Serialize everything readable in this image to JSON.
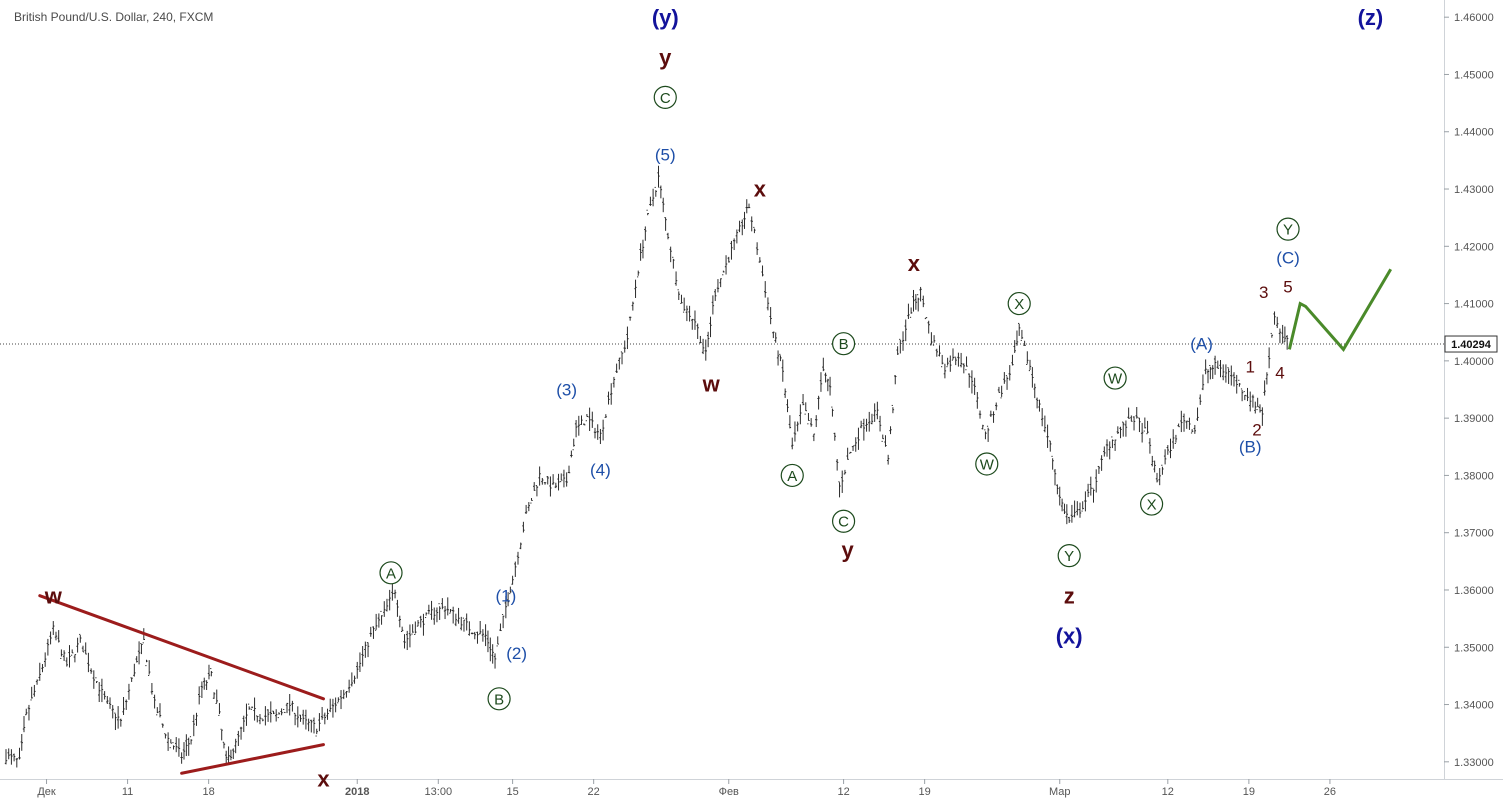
{
  "title": "British Pound/U.S. Dollar, 240, FXCM",
  "chart_data": {
    "type": "ohlc",
    "symbol": "British Pound/U.S. Dollar",
    "interval": "240",
    "source": "FXCM",
    "current_price": "1.40294",
    "y_axis": {
      "range": [
        1.327,
        1.463
      ],
      "tick_values": [
        1.33,
        1.34,
        1.35,
        1.36,
        1.37,
        1.38,
        1.39,
        1.4,
        1.41,
        1.42,
        1.43,
        1.44,
        1.45,
        1.46
      ],
      "tick_labels": [
        "1.33000",
        "1.34000",
        "1.35000",
        "1.36000",
        "1.37000",
        "1.38000",
        "1.39000",
        "1.40000",
        "1.41000",
        "1.42000",
        "1.43000",
        "1.44000",
        "1.45000",
        "1.46000"
      ]
    },
    "x_axis": {
      "range": [
        0,
        106
      ],
      "ticks": [
        {
          "x": 3,
          "label": "Дек"
        },
        {
          "x": 9,
          "label": "11"
        },
        {
          "x": 15,
          "label": "18"
        },
        {
          "x": 26,
          "label": "2018",
          "bold": true
        },
        {
          "x": 32,
          "label": "13:00"
        },
        {
          "x": 37.5,
          "label": "15"
        },
        {
          "x": 43.5,
          "label": "22"
        },
        {
          "x": 53.5,
          "label": "Фев"
        },
        {
          "x": 62,
          "label": "12"
        },
        {
          "x": 68,
          "label": "19"
        },
        {
          "x": 78,
          "label": "Мар"
        },
        {
          "x": 86,
          "label": "12"
        },
        {
          "x": 92,
          "label": "19"
        },
        {
          "x": 98,
          "label": "26"
        }
      ]
    },
    "price_path": [
      [
        0,
        1.331
      ],
      [
        1,
        1.33
      ],
      [
        1.5,
        1.338
      ],
      [
        2.5,
        1.345
      ],
      [
        3.5,
        1.353
      ],
      [
        4.5,
        1.347
      ],
      [
        5.5,
        1.351
      ],
      [
        6.5,
        1.345
      ],
      [
        7.5,
        1.34
      ],
      [
        8.5,
        1.337
      ],
      [
        9.5,
        1.346
      ],
      [
        10.2,
        1.351
      ],
      [
        11,
        1.34
      ],
      [
        12,
        1.334
      ],
      [
        13,
        1.331
      ],
      [
        13.7,
        1.334
      ],
      [
        14.5,
        1.343
      ],
      [
        15.2,
        1.345
      ],
      [
        15.8,
        1.338
      ],
      [
        16.3,
        1.33
      ],
      [
        17,
        1.333
      ],
      [
        18,
        1.339
      ],
      [
        19,
        1.338
      ],
      [
        20,
        1.338
      ],
      [
        21,
        1.34
      ],
      [
        22,
        1.337
      ],
      [
        23,
        1.336
      ],
      [
        24,
        1.339
      ],
      [
        25,
        1.342
      ],
      [
        26,
        1.346
      ],
      [
        27,
        1.352
      ],
      [
        28,
        1.356
      ],
      [
        28.8,
        1.36
      ],
      [
        29.5,
        1.351
      ],
      [
        30.5,
        1.354
      ],
      [
        31.5,
        1.356
      ],
      [
        32.5,
        1.357
      ],
      [
        33.5,
        1.355
      ],
      [
        34.5,
        1.353
      ],
      [
        35.5,
        1.352
      ],
      [
        36.2,
        1.348
      ],
      [
        37,
        1.357
      ],
      [
        37.5,
        1.362
      ],
      [
        38.5,
        1.373
      ],
      [
        39.5,
        1.38
      ],
      [
        40.5,
        1.378
      ],
      [
        41.5,
        1.379
      ],
      [
        42.2,
        1.388
      ],
      [
        43,
        1.39
      ],
      [
        44,
        1.387
      ],
      [
        45,
        1.397
      ],
      [
        46,
        1.404
      ],
      [
        46.8,
        1.416
      ],
      [
        47.5,
        1.425
      ],
      [
        48.3,
        1.432
      ],
      [
        49,
        1.422
      ],
      [
        50,
        1.41
      ],
      [
        51,
        1.407
      ],
      [
        51.8,
        1.401
      ],
      [
        52.5,
        1.412
      ],
      [
        53.5,
        1.418
      ],
      [
        54.5,
        1.424
      ],
      [
        55,
        1.427
      ],
      [
        56,
        1.415
      ],
      [
        56.8,
        1.405
      ],
      [
        57.5,
        1.398
      ],
      [
        58.2,
        1.385
      ],
      [
        59,
        1.392
      ],
      [
        59.8,
        1.387
      ],
      [
        60.5,
        1.399
      ],
      [
        61,
        1.395
      ],
      [
        61.7,
        1.378
      ],
      [
        62.5,
        1.384
      ],
      [
        63.5,
        1.389
      ],
      [
        64.5,
        1.391
      ],
      [
        65.3,
        1.383
      ],
      [
        66,
        1.401
      ],
      [
        67,
        1.409
      ],
      [
        67.7,
        1.412
      ],
      [
        68.5,
        1.404
      ],
      [
        69.5,
        1.399
      ],
      [
        70.5,
        1.401
      ],
      [
        71.5,
        1.397
      ],
      [
        72.5,
        1.387
      ],
      [
        73.5,
        1.394
      ],
      [
        74.5,
        1.399
      ],
      [
        75,
        1.405
      ],
      [
        75.8,
        1.399
      ],
      [
        76.5,
        1.392
      ],
      [
        77.3,
        1.385
      ],
      [
        78,
        1.376
      ],
      [
        78.7,
        1.372
      ],
      [
        79.5,
        1.374
      ],
      [
        80.5,
        1.378
      ],
      [
        81.5,
        1.385
      ],
      [
        82.5,
        1.388
      ],
      [
        83.5,
        1.39
      ],
      [
        84.5,
        1.387
      ],
      [
        85.2,
        1.379
      ],
      [
        86.2,
        1.385
      ],
      [
        87.2,
        1.39
      ],
      [
        88,
        1.388
      ],
      [
        88.8,
        1.398
      ],
      [
        89.5,
        1.399
      ],
      [
        90.5,
        1.398
      ],
      [
        91.5,
        1.395
      ],
      [
        92.3,
        1.393
      ],
      [
        93,
        1.391
      ],
      [
        93.5,
        1.401
      ],
      [
        93.9,
        1.408
      ],
      [
        94.5,
        1.404
      ],
      [
        95,
        1.4029
      ]
    ],
    "horizontal_line": {
      "price": 1.40294,
      "style": "dotted"
    },
    "trendlines": [
      {
        "color": "#9c1c1c",
        "from": [
          2.5,
          1.359
        ],
        "to": [
          23.5,
          1.341
        ]
      },
      {
        "color": "#9c1c1c",
        "from": [
          13,
          1.328
        ],
        "to": [
          23.5,
          1.333
        ]
      }
    ],
    "projection": {
      "color": "#4a8a2a",
      "points": [
        [
          95,
          1.402
        ],
        [
          95.8,
          1.41
        ],
        [
          96.2,
          1.4095
        ],
        [
          99,
          1.402
        ],
        [
          102.5,
          1.416
        ]
      ]
    },
    "wave_labels": [
      {
        "text": "w",
        "x": 3.5,
        "y": 1.359,
        "style": "dark-red"
      },
      {
        "text": "x",
        "x": 23.5,
        "y": 1.327,
        "style": "dark-red"
      },
      {
        "text": "A",
        "x": 28.5,
        "y": 1.363,
        "style": "circled"
      },
      {
        "text": "B",
        "x": 36.5,
        "y": 1.341,
        "style": "circled"
      },
      {
        "text": "(1)",
        "x": 37,
        "y": 1.359,
        "style": "blue"
      },
      {
        "text": "(2)",
        "x": 37.8,
        "y": 1.349,
        "style": "blue"
      },
      {
        "text": "(3)",
        "x": 41.5,
        "y": 1.395,
        "style": "blue"
      },
      {
        "text": "(4)",
        "x": 44,
        "y": 1.381,
        "style": "blue"
      },
      {
        "text": "(5)",
        "x": 48.8,
        "y": 1.436,
        "style": "blue"
      },
      {
        "text": "C",
        "x": 48.8,
        "y": 1.446,
        "style": "circled"
      },
      {
        "text": "y",
        "x": 48.8,
        "y": 1.453,
        "style": "dark-red"
      },
      {
        "text": "(y)",
        "x": 48.8,
        "y": 1.46,
        "style": "navy"
      },
      {
        "text": "w",
        "x": 52.2,
        "y": 1.396,
        "style": "dark-red"
      },
      {
        "text": "x",
        "x": 55.8,
        "y": 1.43,
        "style": "dark-red"
      },
      {
        "text": "A",
        "x": 58.2,
        "y": 1.38,
        "style": "circled"
      },
      {
        "text": "B",
        "x": 62,
        "y": 1.403,
        "style": "circled"
      },
      {
        "text": "C",
        "x": 62,
        "y": 1.372,
        "style": "circled"
      },
      {
        "text": "y",
        "x": 62.3,
        "y": 1.367,
        "style": "dark-red"
      },
      {
        "text": "x",
        "x": 67.2,
        "y": 1.417,
        "style": "dark-red"
      },
      {
        "text": "W",
        "x": 72.6,
        "y": 1.382,
        "style": "circled"
      },
      {
        "text": "X",
        "x": 75,
        "y": 1.41,
        "style": "circled"
      },
      {
        "text": "Y",
        "x": 78.7,
        "y": 1.366,
        "style": "circled"
      },
      {
        "text": "z",
        "x": 78.7,
        "y": 1.359,
        "style": "dark-red"
      },
      {
        "text": "(x)",
        "x": 78.7,
        "y": 1.352,
        "style": "navy"
      },
      {
        "text": "W",
        "x": 82.1,
        "y": 1.397,
        "style": "circled"
      },
      {
        "text": "X",
        "x": 84.8,
        "y": 1.375,
        "style": "circled"
      },
      {
        "text": "(A)",
        "x": 88.5,
        "y": 1.403,
        "style": "blue"
      },
      {
        "text": "1",
        "x": 92.1,
        "y": 1.399,
        "style": "dark-red-small"
      },
      {
        "text": "2",
        "x": 92.6,
        "y": 1.388,
        "style": "dark-red-small"
      },
      {
        "text": "(B)",
        "x": 92.1,
        "y": 1.385,
        "style": "blue"
      },
      {
        "text": "3",
        "x": 93.1,
        "y": 1.412,
        "style": "dark-red-small"
      },
      {
        "text": "4",
        "x": 94.3,
        "y": 1.398,
        "style": "dark-red-small"
      },
      {
        "text": "5",
        "x": 94.9,
        "y": 1.413,
        "style": "dark-red-small"
      },
      {
        "text": "(C)",
        "x": 94.9,
        "y": 1.418,
        "style": "blue"
      },
      {
        "text": "Y",
        "x": 94.9,
        "y": 1.423,
        "style": "circled"
      },
      {
        "text": "(z)",
        "x": 101,
        "y": 1.46,
        "style": "navy"
      }
    ]
  }
}
